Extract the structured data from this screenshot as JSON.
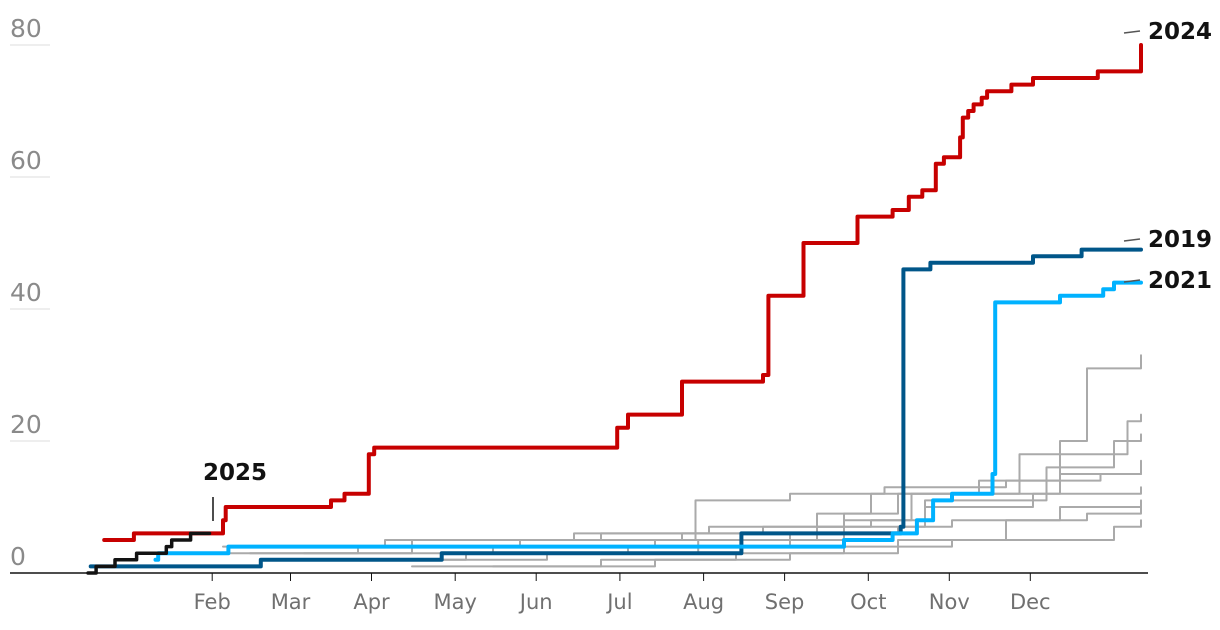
{
  "chart_data": {
    "type": "line",
    "title": "",
    "xlabel": "",
    "ylabel": "",
    "ylim": [
      0,
      80
    ],
    "yticks": [
      "0",
      "20",
      "40",
      "60",
      "80"
    ],
    "xticks": [
      "Feb",
      "Mar",
      "Apr",
      "May",
      "Jun",
      "Jul",
      "Aug",
      "Sep",
      "Oct",
      "Nov",
      "Dec"
    ],
    "xtick_days": [
      46,
      75,
      105,
      136,
      166,
      197,
      228,
      258,
      289,
      319,
      349
    ],
    "grid": true,
    "legend": "end-labels",
    "series": [
      {
        "name": "2024",
        "color": "#c70000",
        "width": 4,
        "label": "2024",
        "x": [
          6,
          17,
          34,
          50,
          51,
          90,
          95,
          104,
          106,
          115,
          128,
          132,
          138,
          180,
          196,
          200,
          220,
          250,
          252,
          265,
          270,
          285,
          298,
          304,
          309,
          314,
          317,
          323,
          324,
          326,
          328,
          331,
          333,
          342,
          345,
          350,
          365,
          374,
          390
        ],
        "y": [
          5,
          6,
          6,
          8,
          10,
          11,
          12,
          18,
          19,
          19,
          19,
          19,
          19,
          19,
          22,
          24,
          29,
          30,
          42,
          50,
          50,
          54,
          55,
          57,
          58,
          62,
          63,
          66,
          69,
          70,
          71,
          72,
          73,
          74,
          74,
          75,
          75,
          76,
          80
        ]
      },
      {
        "name": "2019",
        "color": "#005689",
        "width": 4,
        "label": "2019",
        "x": [
          1,
          5,
          19,
          25,
          30,
          64,
          130,
          131,
          165,
          230,
          242,
          250,
          270,
          301,
          302,
          312,
          350,
          368,
          390
        ],
        "y": [
          1,
          1,
          1,
          1,
          1,
          2,
          2,
          3,
          3,
          3,
          6,
          6,
          6,
          7,
          46,
          47,
          48,
          49,
          49
        ]
      },
      {
        "name": "2021",
        "color": "#00b2ff",
        "width": 4,
        "label": "2021",
        "x": [
          25,
          26,
          30,
          52,
          65,
          125,
          205,
          230,
          255,
          280,
          298,
          307,
          313,
          320,
          335,
          336,
          350,
          360,
          376,
          380,
          390
        ],
        "y": [
          2,
          3,
          3,
          4,
          4,
          4,
          4,
          4,
          4,
          5,
          6,
          8,
          11,
          12,
          15,
          41,
          41,
          42,
          43,
          44,
          44
        ]
      },
      {
        "name": "2025",
        "color": "#121212",
        "width": 3.5,
        "label": "2025",
        "x": [
          0,
          3,
          10,
          18,
          24,
          29,
          31,
          35,
          38,
          41,
          45
        ],
        "y": [
          0,
          1,
          2,
          3,
          3,
          4,
          5,
          5,
          6,
          6,
          6
        ]
      },
      {
        "name": "",
        "color": "#aaaaaa",
        "width": 2,
        "x": [
          50,
          110,
          180,
          230,
          280,
          300,
          360,
          370,
          390
        ],
        "y": [
          4,
          5,
          6,
          7,
          9,
          12,
          20,
          31,
          33
        ]
      },
      {
        "name": "",
        "color": "#aaaaaa",
        "width": 2,
        "x": [
          60,
          120,
          190,
          250,
          290,
          305,
          345,
          385,
          390
        ],
        "y": [
          3,
          5,
          6,
          7,
          8,
          12,
          18,
          23,
          24
        ]
      },
      {
        "name": "",
        "color": "#aaaaaa",
        "width": 2,
        "x": [
          70,
          140,
          200,
          260,
          300,
          310,
          355,
          380,
          390
        ],
        "y": [
          2,
          3,
          4,
          6,
          7,
          11,
          16,
          20,
          21
        ]
      },
      {
        "name": "",
        "color": "#aaaaaa",
        "width": 2,
        "x": [
          80,
          150,
          210,
          270,
          290,
          330,
          360,
          390
        ],
        "y": [
          3,
          4,
          5,
          9,
          12,
          14,
          15,
          17
        ]
      },
      {
        "name": "",
        "color": "#aaaaaa",
        "width": 2,
        "x": [
          90,
          160,
          225,
          260,
          295,
          340,
          375,
          390
        ],
        "y": [
          4,
          5,
          11,
          12,
          13,
          14,
          15,
          16
        ]
      },
      {
        "name": "",
        "color": "#aaaaaa",
        "width": 2,
        "x": [
          100,
          170,
          226,
          280,
          310,
          350,
          390
        ],
        "y": [
          2,
          3,
          5,
          8,
          10,
          12,
          13
        ]
      },
      {
        "name": "",
        "color": "#aaaaaa",
        "width": 2,
        "x": [
          40,
          100,
          160,
          220,
          270,
          320,
          360,
          390
        ],
        "y": [
          3,
          4,
          5,
          6,
          7,
          8,
          10,
          11
        ]
      },
      {
        "name": "",
        "color": "#aaaaaa",
        "width": 2,
        "x": [
          120,
          190,
          240,
          280,
          320,
          380,
          390
        ],
        "y": [
          1,
          2,
          3,
          4,
          5,
          7,
          8
        ]
      },
      {
        "name": "",
        "color": "#aaaaaa",
        "width": 2,
        "x": [
          150,
          210,
          260,
          300,
          340,
          370,
          390
        ],
        "y": [
          1,
          2,
          3,
          5,
          8,
          9,
          10
        ]
      }
    ]
  }
}
